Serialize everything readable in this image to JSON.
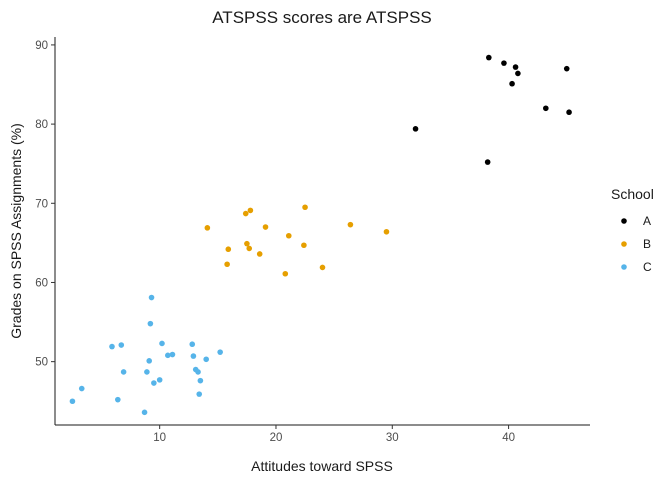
{
  "chart_data": {
    "type": "scatter",
    "title": "ATSPSS scores are ATSPSS",
    "xlabel": "Attitudes toward SPSS",
    "ylabel": "Grades on SPSS Assignments (%)",
    "xlim": [
      1.0,
      47.0
    ],
    "ylim": [
      42.0,
      91.0
    ],
    "xticks": [
      10,
      20,
      30,
      40
    ],
    "yticks": [
      50,
      60,
      70,
      80,
      90
    ],
    "grid": false,
    "legend": {
      "title": "School",
      "placement": "right"
    },
    "series": [
      {
        "name": "A",
        "color": "#000000",
        "points": [
          [
            38.3,
            88.4
          ],
          [
            39.6,
            87.7
          ],
          [
            40.6,
            87.2
          ],
          [
            40.8,
            86.4
          ],
          [
            45.0,
            87.0
          ],
          [
            40.3,
            85.1
          ],
          [
            43.2,
            82.0
          ],
          [
            45.2,
            81.5
          ],
          [
            32.0,
            79.4
          ],
          [
            38.2,
            75.2
          ]
        ]
      },
      {
        "name": "B",
        "color": "#E69F00",
        "points": [
          [
            22.5,
            69.5
          ],
          [
            17.8,
            69.1
          ],
          [
            17.4,
            68.7
          ],
          [
            26.4,
            67.3
          ],
          [
            14.1,
            66.9
          ],
          [
            19.1,
            67.0
          ],
          [
            29.5,
            66.4
          ],
          [
            21.1,
            65.9
          ],
          [
            17.5,
            64.9
          ],
          [
            17.7,
            64.3
          ],
          [
            22.4,
            64.7
          ],
          [
            15.9,
            64.2
          ],
          [
            18.6,
            63.6
          ],
          [
            15.8,
            62.3
          ],
          [
            24.0,
            61.9
          ],
          [
            20.8,
            61.1
          ]
        ]
      },
      {
        "name": "C",
        "color": "#56B4E9",
        "points": [
          [
            9.3,
            58.1
          ],
          [
            9.2,
            54.8
          ],
          [
            10.2,
            52.3
          ],
          [
            12.8,
            52.2
          ],
          [
            6.7,
            52.1
          ],
          [
            5.9,
            51.9
          ],
          [
            15.2,
            51.2
          ],
          [
            11.1,
            50.9
          ],
          [
            10.7,
            50.8
          ],
          [
            12.9,
            50.7
          ],
          [
            14.0,
            50.3
          ],
          [
            9.1,
            50.1
          ],
          [
            13.1,
            49.0
          ],
          [
            13.3,
            48.7
          ],
          [
            6.9,
            48.7
          ],
          [
            8.9,
            48.7
          ],
          [
            10.0,
            47.7
          ],
          [
            9.5,
            47.3
          ],
          [
            13.5,
            47.6
          ],
          [
            3.3,
            46.6
          ],
          [
            13.4,
            45.9
          ],
          [
            6.4,
            45.2
          ],
          [
            2.5,
            45.0
          ],
          [
            8.7,
            43.6
          ]
        ]
      }
    ]
  }
}
